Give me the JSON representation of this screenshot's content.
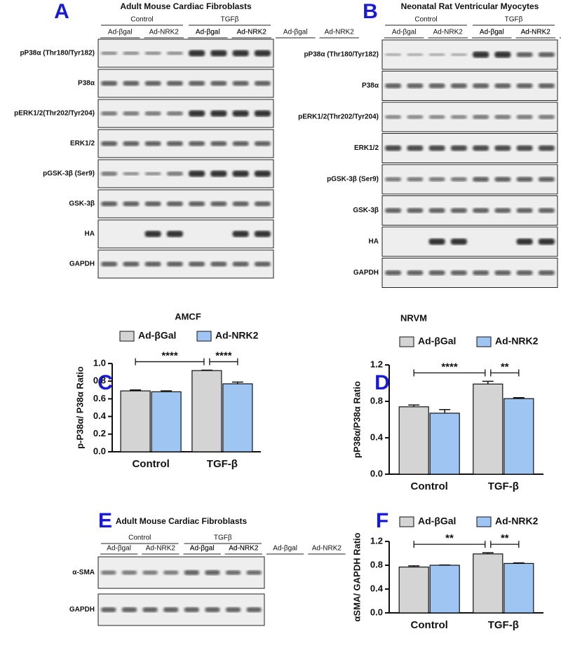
{
  "panels": [
    "A",
    "B",
    "C",
    "D",
    "E",
    "F"
  ],
  "blots": [
    {
      "title": "Adult Mouse Cardiac Fibroblasts",
      "groups": [
        "Control",
        "TGFβ"
      ],
      "lanes": [
        "Ad-βgal",
        "Ad-NRK2",
        "Ad-βgal",
        "Ad-NRK2"
      ],
      "rows": [
        "pP38α (Thr180/Tyr182)",
        "P38α",
        "pERK1/2(Thr202/Tyr204)",
        "ERK1/2",
        "pGSK-3β (Ser9)",
        "GSK-3β",
        "HA",
        "GAPDH"
      ]
    },
    {
      "title": "Neonatal Rat Ventricular Myocytes",
      "groups": [
        "Control",
        "TGFβ"
      ],
      "lanes": [
        "Ad-βgal",
        "Ad-NRK2",
        "Ad-βgal",
        "Ad-NRK2"
      ],
      "rows": [
        "pP38α (Thr180/Tyr182)",
        "P38α",
        "pERK1/2(Thr202/Tyr204)",
        "ERK1/2",
        "pGSK-3β (Ser9)",
        "GSK-3β",
        "HA",
        "GAPDH"
      ]
    },
    {
      "title": "Adult Mouse Cardiac Fibroblasts",
      "groups": [
        "Control",
        "TGFβ"
      ],
      "lanes": [
        "Ad-βgal",
        "Ad-NRK2",
        "Ad-βgal",
        "Ad-NRK2"
      ],
      "rows": [
        "α-SMA",
        "GAPDH"
      ]
    }
  ],
  "chart_data": [
    {
      "type": "bar",
      "title": "AMCF",
      "y_label": "p-P38α/ P38α Ratio",
      "categories": [
        "Control",
        "TGF-β"
      ],
      "series": [
        {
          "name": "Ad-βGal",
          "color": "#d4d4d4",
          "values": [
            0.69,
            0.92
          ],
          "errors": [
            0.01,
            0.005
          ]
        },
        {
          "name": "Ad-NRK2",
          "color": "#9fc5f3",
          "values": [
            0.68,
            0.77
          ],
          "errors": [
            0.01,
            0.02
          ]
        }
      ],
      "ylim": [
        0,
        1.0
      ],
      "yticks": [
        {
          "value": 0,
          "label": "0.0"
        },
        0.2,
        0.4,
        0.6,
        0.8,
        {
          "value": 1,
          "label": "1.0"
        }
      ],
      "annotations": [
        "****",
        "****"
      ]
    },
    {
      "type": "bar",
      "title": "NRVM",
      "y_label": "pP38α/P38α Ratio",
      "categories": [
        "Control",
        "TGF-β"
      ],
      "series": [
        {
          "name": "Ad-βGal",
          "color": "#d4d4d4",
          "values": [
            0.74,
            0.99
          ],
          "errors": [
            0.02,
            0.03
          ]
        },
        {
          "name": "Ad-NRK2",
          "color": "#9fc5f3",
          "values": [
            0.67,
            0.83
          ],
          "errors": [
            0.04,
            0.01
          ]
        }
      ],
      "ylim": [
        0,
        1.2
      ],
      "yticks": [
        {
          "value": 0,
          "label": "0.0"
        },
        0.4,
        0.8,
        1.2
      ],
      "annotations": [
        "****",
        "**"
      ]
    },
    {
      "type": "bar",
      "y_label": "αSMA/ GAPDH Ratio",
      "categories": [
        "Control",
        "TGF-β"
      ],
      "series": [
        {
          "name": "Ad-βGal",
          "color": "#d4d4d4",
          "values": [
            0.77,
            0.99
          ],
          "errors": [
            0.02,
            0.02
          ]
        },
        {
          "name": "Ad-NRK2",
          "color": "#9fc5f3",
          "values": [
            0.8,
            0.83
          ],
          "errors": [
            0.005,
            0.01
          ]
        }
      ],
      "ylim": [
        0,
        1.2
      ],
      "yticks": [
        {
          "value": 0,
          "label": "0.0"
        },
        0.4,
        0.8,
        1.2
      ],
      "annotations": [
        "**",
        "**"
      ]
    }
  ]
}
